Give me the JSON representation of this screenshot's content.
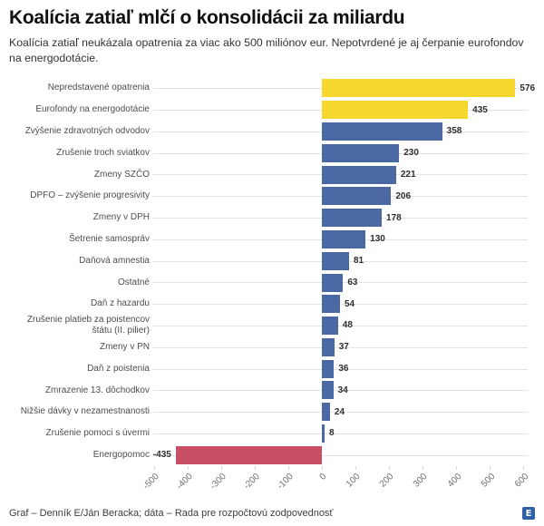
{
  "header": {
    "title": "Koalícia zatiaľ mlčí o konsolidácii za miliardu",
    "subtitle": "Koalícia zatiaľ neukázala opatrenia za viac ako 500 miliónov eur. Nepotvrdené je aj čerpanie eurofondov na energodotácie."
  },
  "chart_data": {
    "type": "bar",
    "orientation": "horizontal",
    "title": "Koalícia zatiaľ mlčí o konsolidácii za miliardu",
    "categories": [
      "Nepredstavené opatrenia",
      "Eurofondy na energodotácie",
      "Zvýšenie zdravotných odvodov",
      "Zrušenie troch sviatkov",
      "Zmeny SZČO",
      "DPFO – zvýšenie progresivity",
      "Zmeny v DPH",
      "Šetrenie samospráv",
      "Daňová amnestia",
      "Ostatné",
      "Daň z hazardu",
      "Zrušenie platieb za poistencov štátu (II. pilier)",
      "Zmeny v PN",
      "Daň z poistenia",
      "Zmrazenie 13. dôchodkov",
      "Nižšie dávky v nezamestnanosti",
      "Zrušenie pomoci s úvermi",
      "Energopomoc"
    ],
    "values": [
      576,
      435,
      358,
      230,
      221,
      206,
      178,
      130,
      81,
      63,
      54,
      48,
      37,
      36,
      34,
      24,
      8,
      -435
    ],
    "bar_colors": [
      "#F6D72E",
      "#F6D72E",
      "#4A68A2",
      "#4A68A2",
      "#4A68A2",
      "#4A68A2",
      "#4A68A2",
      "#4A68A2",
      "#4A68A2",
      "#4A68A2",
      "#4A68A2",
      "#4A68A2",
      "#4A68A2",
      "#4A68A2",
      "#4A68A2",
      "#4A68A2",
      "#4A68A2",
      "#C95064"
    ],
    "colors": {
      "highlight_yellow": "#F6D72E",
      "default_blue": "#4A68A2",
      "negative_red": "#C95064",
      "gridline": "#e3e3e3"
    },
    "x_ticks": [
      -500,
      -400,
      -300,
      -200,
      -100,
      0,
      100,
      200,
      300,
      400,
      500,
      600
    ],
    "xlim": [
      -500,
      620
    ],
    "value_labels": true,
    "grid": "row-lines",
    "legend": "none"
  },
  "footer": {
    "credit": "Graf – Denník E/Ján Beracka; dáta – Rada pre rozpočtovú zodpovednosť",
    "logo_letter": "E",
    "logo_color": "#2f5fa5"
  }
}
